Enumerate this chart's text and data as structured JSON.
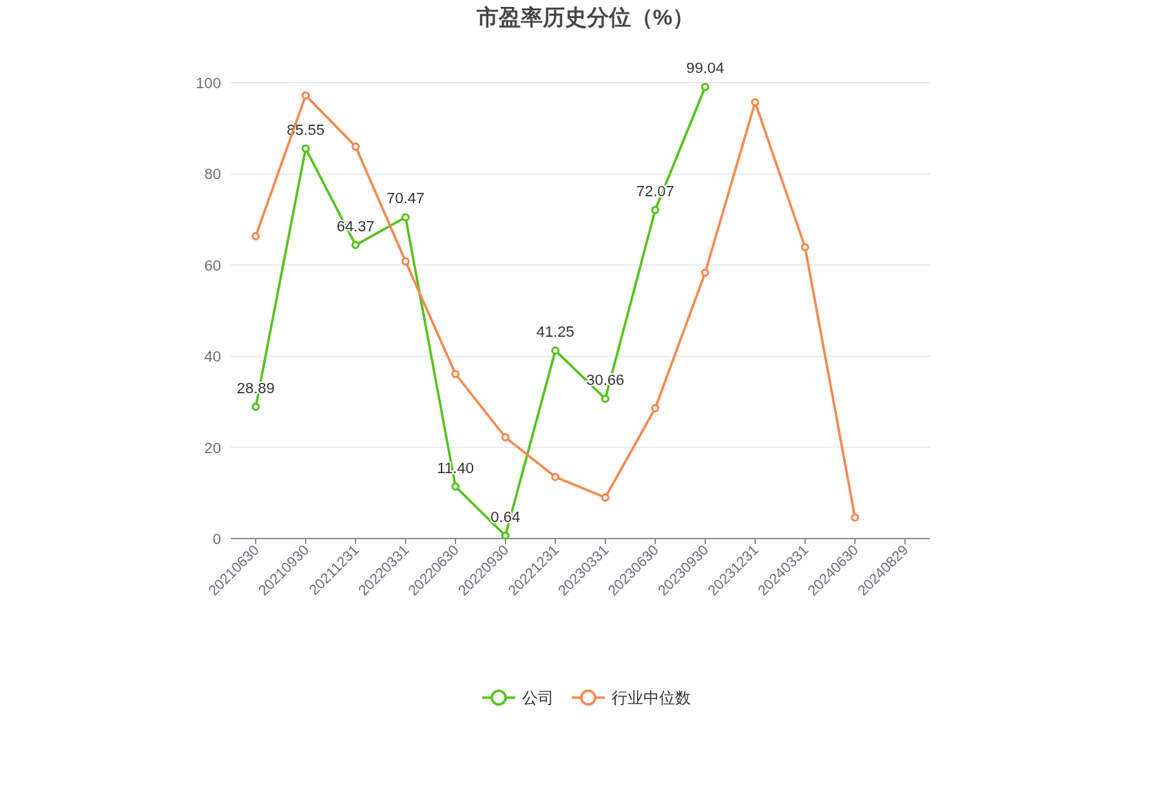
{
  "chart_data": {
    "type": "line",
    "title": "市盈率历史分位（%）",
    "categories": [
      "20210630",
      "20210930",
      "20211231",
      "20220331",
      "20220630",
      "20220930",
      "20221231",
      "20230331",
      "20230630",
      "20230930",
      "20231231",
      "20240331",
      "20240630",
      "20240829"
    ],
    "series": [
      {
        "name": "公司",
        "color": "#52c41a",
        "values": [
          28.89,
          85.55,
          64.37,
          70.47,
          11.4,
          0.64,
          41.25,
          30.66,
          72.07,
          99.04,
          null,
          null,
          null,
          null
        ],
        "value_labels": [
          "28.89",
          "85.55",
          "64.37",
          "70.47",
          "11.40",
          "0.64",
          "41.25",
          "30.66",
          "72.07",
          "99.04",
          null,
          null,
          null,
          null
        ]
      },
      {
        "name": "行业中位数",
        "color": "#f5884f",
        "values": [
          66.3,
          97.2,
          86.0,
          60.8,
          36.1,
          22.2,
          13.5,
          9.0,
          28.6,
          58.3,
          95.7,
          63.9,
          4.6,
          null
        ]
      }
    ],
    "ylim": [
      0,
      100
    ],
    "yticks": [
      0,
      20,
      40,
      60,
      80,
      100
    ],
    "grid": "y",
    "legend": "bottom",
    "marker": "circle",
    "line_style": "solid"
  }
}
